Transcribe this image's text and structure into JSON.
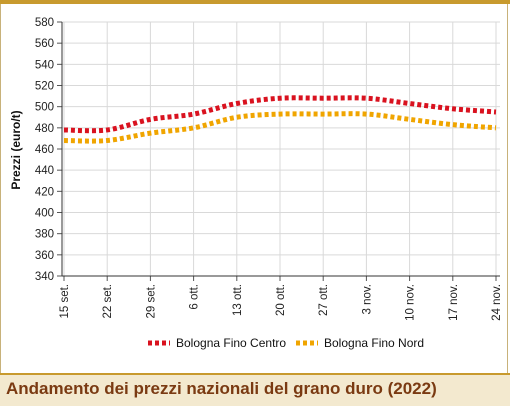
{
  "caption": "Andamento dei prezzi nazionali del grano duro (2022)",
  "chart_data": {
    "type": "line",
    "title": "",
    "xlabel": "",
    "ylabel": "Prezzi (euro/t)",
    "ylim": [
      340,
      580
    ],
    "yticks": [
      340,
      360,
      380,
      400,
      420,
      440,
      460,
      480,
      500,
      520,
      540,
      560,
      580
    ],
    "grid": true,
    "legend_position": "bottom",
    "categories": [
      "15 set.",
      "22 set.",
      "29 set.",
      "6 ott.",
      "13 ott.",
      "20 ott.",
      "27 ott.",
      "3 nov.",
      "10 nov.",
      "17 nov.",
      "24 nov."
    ],
    "series": [
      {
        "name": "Bologna Fino Centro",
        "color": "#d9121f",
        "values": [
          478,
          478,
          488,
          493,
          503,
          508,
          508,
          508,
          503,
          498,
          495
        ]
      },
      {
        "name": "Bologna Fino Nord",
        "color": "#f0a500",
        "values": [
          468,
          468,
          475,
          480,
          490,
          493,
          493,
          493,
          488,
          483,
          480
        ]
      }
    ]
  }
}
